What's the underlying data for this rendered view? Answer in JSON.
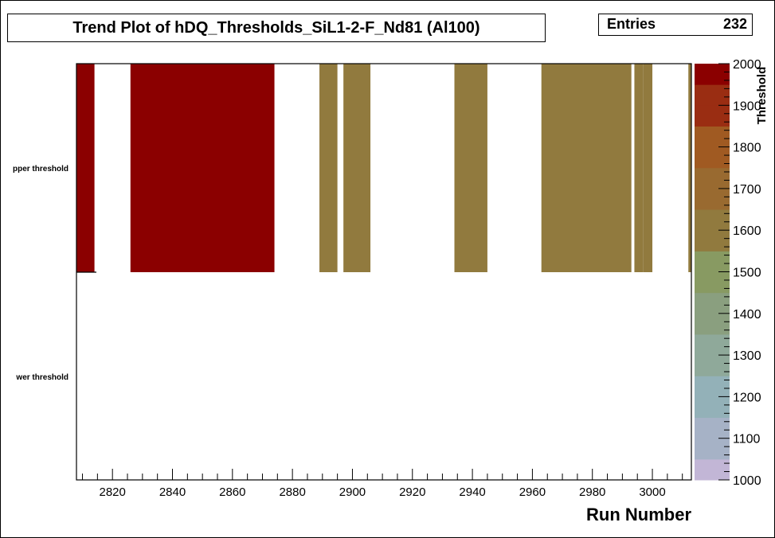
{
  "title": "Trend Plot of hDQ_Thresholds_SiL1-2-F_Nd81 (Al100)",
  "stats": {
    "entries_label": "Entries",
    "entries_value": "232"
  },
  "colors": {
    "upper_band": "#8b0000",
    "lower_band": "#917a3e"
  },
  "chart_data": {
    "type": "heatmap",
    "title": "Trend Plot of hDQ_Thresholds_SiL1-2-F_Nd81 (Al100)",
    "xlabel": "Run Number",
    "ylabel": "",
    "zlabel": "Threshold",
    "xlim": [
      2808,
      3013
    ],
    "zlim": [
      1000,
      2000
    ],
    "x_tick_labels": [
      "2820",
      "2840",
      "2860",
      "2880",
      "2900",
      "2920",
      "2940",
      "2960",
      "2980",
      "3000"
    ],
    "y_categories": [
      "lower threshold",
      "upper threshold"
    ],
    "y_tick_labels_shown": [
      "pper threshold",
      "wer threshold"
    ],
    "z_tick_labels": [
      "1000",
      "1100",
      "1200",
      "1300",
      "1400",
      "1500",
      "1600",
      "1700",
      "1800",
      "1900",
      "2000"
    ],
    "grid": false,
    "cells": [
      {
        "category": "upper threshold",
        "x": [
          2808,
          2814
        ],
        "z": 2000
      },
      {
        "category": "upper threshold",
        "x": [
          2826,
          2874
        ],
        "z": 2000
      },
      {
        "category": "upper threshold",
        "x": [
          2889,
          2895
        ],
        "z": 1600
      },
      {
        "category": "upper threshold",
        "x": [
          2897,
          2906
        ],
        "z": 1600
      },
      {
        "category": "upper threshold",
        "x": [
          2934,
          2945
        ],
        "z": 1600
      },
      {
        "category": "upper threshold",
        "x": [
          2963,
          2993
        ],
        "z": 1600
      },
      {
        "category": "upper threshold",
        "x": [
          2994,
          2997
        ],
        "z": 1600
      },
      {
        "category": "upper threshold",
        "x": [
          2997,
          3000
        ],
        "z": 1600
      },
      {
        "category": "upper threshold",
        "x": [
          3012,
          3013
        ],
        "z": 1600
      }
    ]
  }
}
